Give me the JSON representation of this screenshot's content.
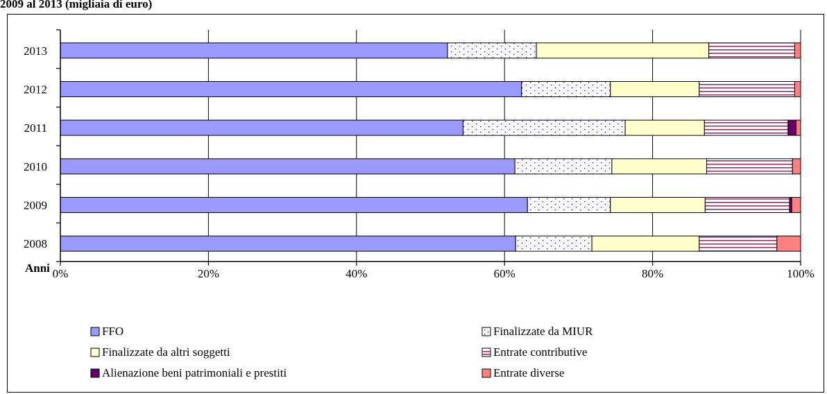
{
  "title": "2009 al 2013 (migliaia di euro)",
  "colors": {
    "ffo": "#9999ff",
    "miur": "#ffffff",
    "altri": "#ffffcc",
    "contributive": "#ffffff",
    "alienazione": "#660066",
    "diverse": "#ff8080"
  },
  "chart_data": {
    "type": "bar",
    "orientation": "horizontal",
    "stacked": "percent",
    "ylabel": "Anni",
    "xlabel": "",
    "xlim": [
      0,
      100
    ],
    "xticks": [
      "0%",
      "20%",
      "40%",
      "60%",
      "80%",
      "100%"
    ],
    "categories": [
      "2013",
      "2012",
      "2011",
      "2010",
      "2009",
      "2008"
    ],
    "grid": true,
    "legend_position": "bottom",
    "series": [
      {
        "name": "FFO",
        "key": "ffo",
        "values": [
          52.3,
          62.3,
          54.4,
          61.4,
          63.1,
          61.5
        ]
      },
      {
        "name": "Finalizzate da MIUR",
        "key": "miur",
        "values": [
          12.0,
          12.0,
          21.9,
          13.1,
          11.2,
          10.3
        ]
      },
      {
        "name": "Finalizzate da altri soggetti",
        "key": "altri",
        "values": [
          23.3,
          12.0,
          10.7,
          12.8,
          12.8,
          14.5
        ]
      },
      {
        "name": "Entrate contributive",
        "key": "contributive",
        "values": [
          11.6,
          12.9,
          11.3,
          11.6,
          11.4,
          10.5
        ]
      },
      {
        "name": "Alienazione beni patrimoniali e prestiti",
        "key": "alienazione",
        "values": [
          0,
          0,
          1.1,
          0,
          0.3,
          0
        ]
      },
      {
        "name": "Entrate diverse",
        "key": "diverse",
        "values": [
          0.8,
          0.8,
          0.6,
          1.1,
          1.2,
          3.2
        ]
      }
    ]
  }
}
